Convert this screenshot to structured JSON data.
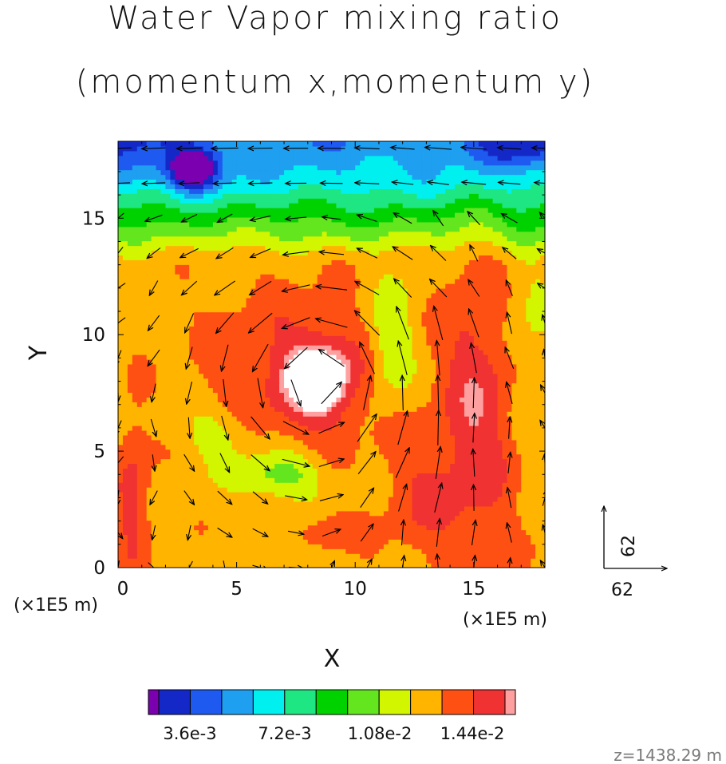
{
  "titles": {
    "line1": "Water Vapor mixing ratio",
    "line2": "(momentum x,momentum y)"
  },
  "chart_data": {
    "type": "heatmap",
    "subtype": "filled-contour-with-vector-arrows",
    "title": "Water Vapor mixing ratio",
    "subtitle": "(momentum x,momentum y)",
    "xlabel": "X",
    "ylabel": "Y",
    "x_unit_label": "(×1E5 m)",
    "y_unit_label": "(×1E5 m)",
    "xlim": [
      0,
      18
    ],
    "ylim": [
      0,
      18.3
    ],
    "x_ticks": [
      0,
      5,
      10,
      15
    ],
    "y_ticks": [
      0,
      5,
      10,
      15
    ],
    "x_tick_labels": [
      "0",
      "5",
      "10",
      "15"
    ],
    "y_tick_labels": [
      "0",
      "5",
      "10",
      "15"
    ],
    "colorbar": {
      "tick_labels": [
        "3.6e-3",
        "7.2e-3",
        "1.08e-2",
        "1.44e-2"
      ],
      "tick_values": [
        0.0036,
        0.0072,
        0.0108,
        0.0144
      ],
      "colors": [
        "#7a00b0",
        "#1428c8",
        "#1e5af0",
        "#1e9ff0",
        "#00f0f0",
        "#1ee682",
        "#00d200",
        "#64e61e",
        "#d2f500",
        "#ffb400",
        "#ff5014",
        "#f03232",
        "#ffa0a0"
      ]
    },
    "field_regions": [
      {
        "name": "dry-spot",
        "cx": 3.2,
        "cy": 17.1,
        "value": 0.003
      },
      {
        "name": "moist-core",
        "cx": 8.6,
        "cy": 8.2,
        "value": 0.016
      },
      {
        "name": "moist-band",
        "cx": 15.0,
        "cy": 7.0,
        "value": 0.0145
      },
      {
        "name": "moist-swirl",
        "cx": 6.5,
        "cy": 8.0,
        "value": 0.014
      },
      {
        "name": "green-patch",
        "cx": 6.6,
        "cy": 3.7,
        "value": 0.01
      }
    ],
    "vector_reference": {
      "x_label": "62",
      "y_label": "62",
      "x": 62,
      "y": 62
    },
    "footer": "z=1438.29 m"
  }
}
